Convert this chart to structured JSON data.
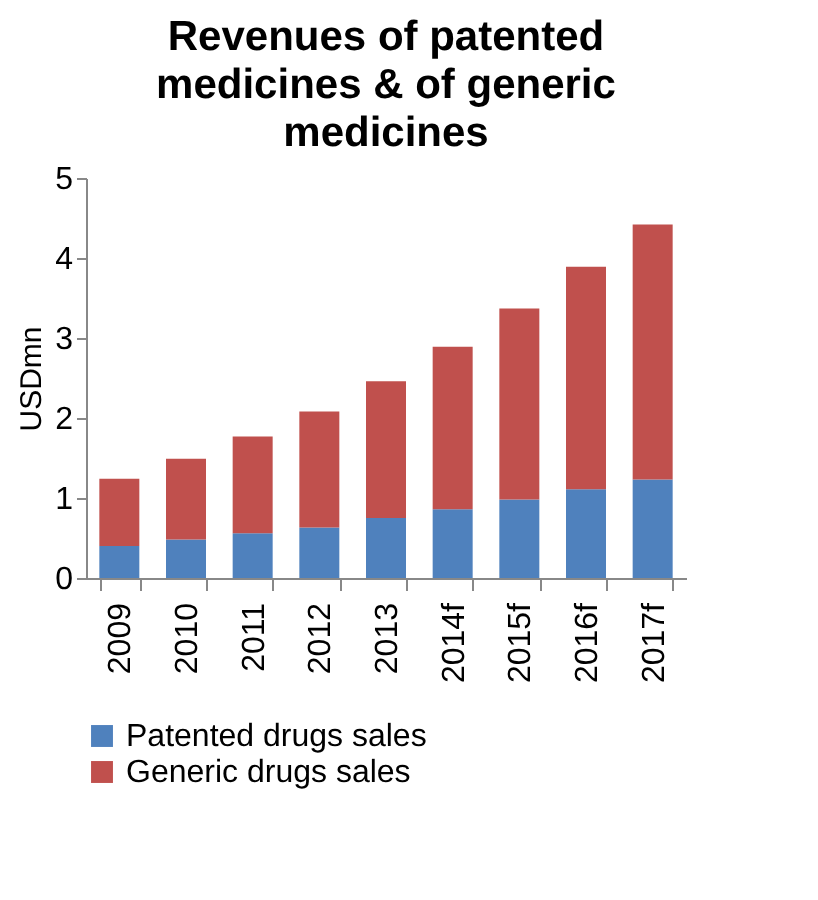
{
  "chart_data": {
    "type": "bar",
    "stacked": true,
    "title": "Revenues of patented medicines & of generic medicines",
    "ylabel": "USDmn",
    "categories": [
      "2009",
      "2010",
      "2011",
      "2012",
      "2013",
      "2014f",
      "2015f",
      "2016f",
      "2017f"
    ],
    "series": [
      {
        "name": "Patented drugs sales",
        "color": "#4f81bd",
        "values": [
          0.4,
          0.48,
          0.56,
          0.63,
          0.75,
          0.86,
          0.98,
          1.11,
          1.23
        ]
      },
      {
        "name": "Generic drugs sales",
        "color": "#c0504d",
        "values": [
          0.84,
          1.01,
          1.21,
          1.45,
          1.71,
          2.03,
          2.39,
          2.78,
          3.19
        ]
      }
    ],
    "ylim": [
      0,
      5
    ],
    "yticks": [
      0,
      1,
      2,
      3,
      4,
      5
    ],
    "grid": false,
    "legend": "bottom"
  }
}
